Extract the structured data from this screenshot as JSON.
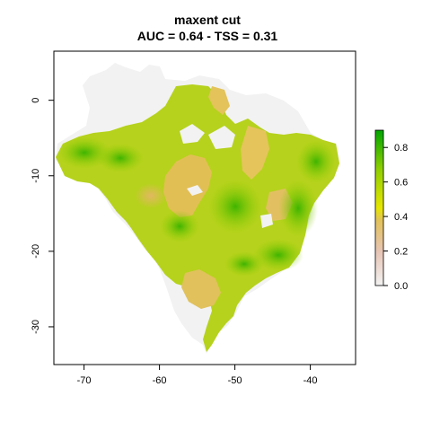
{
  "title": "maxent cut",
  "subtitle": "AUC = 0.64 - TSS = 0.31",
  "colors": {
    "background": "#ffffff",
    "na_region": "#f2f2f2",
    "scale": [
      "#f2f2f2",
      "#e7c4b4",
      "#e0c060",
      "#e6e600",
      "#a8d400",
      "#00a600"
    ]
  },
  "chart_data": {
    "type": "heatmap",
    "title": "maxent cut",
    "subtitle": "AUC = 0.64 - TSS = 0.31",
    "x_ticks": [
      "-70",
      "-60",
      "-50",
      "-40"
    ],
    "y_ticks": [
      "0",
      "-10",
      "-20",
      "-30"
    ],
    "x_tick_values": [
      -70,
      -60,
      -50,
      -40
    ],
    "y_tick_values": [
      0,
      -10,
      -20,
      -30
    ],
    "xlim": [
      -74,
      -34
    ],
    "ylim": [
      -35,
      6.5
    ],
    "legend_ticks": [
      "0.0",
      "0.2",
      "0.4",
      "0.6",
      "0.8"
    ],
    "legend_tick_values": [
      0.0,
      0.2,
      0.4,
      0.6,
      0.8
    ],
    "legend_range": [
      0,
      0.9
    ],
    "legend_position": "right",
    "grid": false
  }
}
